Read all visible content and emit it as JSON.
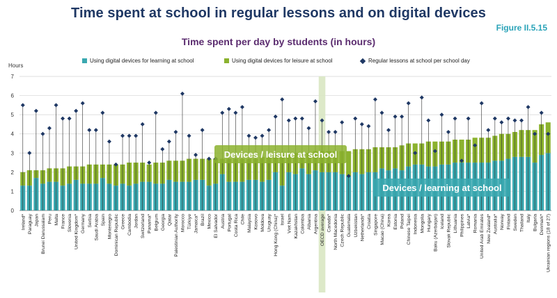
{
  "header": {
    "title": "Time spent at school in regular lessons and on digital devices",
    "figure": "Figure II.5.15",
    "subtitle": "Time spent per day by students (in hours)"
  },
  "annotations": {
    "leisure": "Devices / leisure at school",
    "learning": "Devices / learning at school"
  },
  "colors": {
    "learning": "#3aa8b0",
    "leisure": "#8bb22e",
    "marker": "#1f3864",
    "highlight": "#d9e7c3"
  },
  "chart_data": {
    "type": "bar",
    "ylabel": "Hours",
    "ylim": [
      0,
      7
    ],
    "yticks": [
      0,
      1,
      2,
      3,
      4,
      5,
      6,
      7
    ],
    "highlight_category": "OECD average",
    "legend": [
      "Using digital devices for learning at school",
      "Using digital devices for leisure at school",
      "Regular lessons at school per school day"
    ],
    "categories": [
      "Ireland*",
      "Paraguay",
      "Japan",
      "Brunei Darussalam",
      "Peru",
      "Malta",
      "France",
      "Slovenia",
      "United Kingdom*",
      "Germany",
      "Serbia",
      "Saudi Arabia",
      "Spain",
      "Montenegro",
      "Dominican Republic",
      "Greece",
      "Cambodia",
      "Jordan",
      "Switzerland",
      "Panama*",
      "Belgium",
      "Georgia",
      "Qatar",
      "Palestinian Authority",
      "Morocco",
      "Türkiye",
      "Jamaica*",
      "Brazil",
      "Mexico",
      "El Salvador",
      "Austria",
      "Portugal",
      "Costa Rica",
      "Chile",
      "Malaysia",
      "Kosovo",
      "Moldova",
      "Uruguay",
      "Hong Kong (China)*",
      "Israel",
      "Viet Nam",
      "Kazakhstan",
      "Colombia",
      "Albania",
      "Argentina",
      "OECD average",
      "Canada*",
      "North Macedonia",
      "Czech Republic",
      "Guatemala",
      "Uzbekistan",
      "Netherlands*",
      "Croatia",
      "Singapore",
      "Macao (China)",
      "Korea",
      "Estonia",
      "Poland",
      "Chinese Taipei",
      "Indonesia",
      "Mongolia",
      "Hungary",
      "Baku (Azerbaijan)",
      "Iceland",
      "Slovak Republic",
      "Lithuania",
      "Philippines",
      "Latvia*",
      "Romania",
      "United Arab Emirates",
      "New Zealand*",
      "Australia*",
      "Norway",
      "Finland",
      "Sweden",
      "Thailand",
      "Italy",
      "Bulgaria",
      "Denmark*",
      "Ukrainian regions (18 of 27)"
    ],
    "series": [
      {
        "name": "Using digital devices for learning at school",
        "values": [
          1.3,
          1.3,
          1.7,
          1.4,
          1.5,
          1.5,
          1.3,
          1.4,
          1.6,
          1.4,
          1.4,
          1.4,
          1.7,
          1.4,
          1.3,
          1.4,
          1.3,
          1.4,
          1.5,
          1.5,
          1.4,
          1.4,
          1.6,
          1.5,
          1.5,
          1.5,
          1.6,
          1.6,
          1.3,
          1.4,
          1.9,
          1.5,
          1.5,
          1.5,
          1.6,
          1.6,
          1.5,
          1.6,
          2.0,
          1.3,
          2.0,
          1.9,
          2.2,
          1.9,
          2.1,
          2.0,
          2.0,
          2.0,
          1.9,
          1.8,
          2.0,
          1.9,
          2.0,
          2.0,
          2.2,
          2.1,
          2.2,
          2.1,
          2.3,
          2.4,
          2.4,
          2.3,
          2.3,
          2.4,
          2.4,
          2.5,
          2.5,
          2.5,
          2.5,
          2.5,
          2.5,
          2.6,
          2.6,
          2.7,
          2.8,
          2.8,
          2.8,
          2.5,
          2.9,
          3.0
        ]
      },
      {
        "name": "Using digital devices for leisure at school",
        "values": [
          0.7,
          0.8,
          0.4,
          0.7,
          0.7,
          0.7,
          0.9,
          0.9,
          0.7,
          0.9,
          1.0,
          1.0,
          0.7,
          1.0,
          1.1,
          1.0,
          1.2,
          1.1,
          1.0,
          0.9,
          1.1,
          1.1,
          1.0,
          1.1,
          1.1,
          1.2,
          1.1,
          1.1,
          1.4,
          1.3,
          0.8,
          1.2,
          1.2,
          1.2,
          1.1,
          1.1,
          1.3,
          1.2,
          0.9,
          1.6,
          0.9,
          1.1,
          0.8,
          1.1,
          1.0,
          1.1,
          1.1,
          1.1,
          1.2,
          1.3,
          1.2,
          1.3,
          1.2,
          1.3,
          1.1,
          1.2,
          1.1,
          1.3,
          1.2,
          1.1,
          1.1,
          1.3,
          1.3,
          1.2,
          1.2,
          1.2,
          1.2,
          1.2,
          1.3,
          1.3,
          1.3,
          1.3,
          1.4,
          1.3,
          1.3,
          1.4,
          1.4,
          1.7,
          1.6,
          1.6
        ]
      },
      {
        "name": "Regular lessons at school per school day",
        "values": [
          5.5,
          3.0,
          5.2,
          4.0,
          4.3,
          5.5,
          4.8,
          4.8,
          5.2,
          5.6,
          4.2,
          4.2,
          5.1,
          3.6,
          2.4,
          3.9,
          3.9,
          3.9,
          4.5,
          2.5,
          5.1,
          3.2,
          3.6,
          4.1,
          6.1,
          3.9,
          2.9,
          4.2,
          2.7,
          2.7,
          5.1,
          5.3,
          5.1,
          5.4,
          3.9,
          3.8,
          3.9,
          4.2,
          4.9,
          5.8,
          4.7,
          4.8,
          4.8,
          4.3,
          5.7,
          4.7,
          4.1,
          4.1,
          4.6,
          1.8,
          4.8,
          4.5,
          4.4,
          5.8,
          5.1,
          4.2,
          4.9,
          4.9,
          5.6,
          3.0,
          5.9,
          4.7,
          3.1,
          5.0,
          4.1,
          4.8,
          2.6,
          4.8,
          3.4,
          5.6,
          4.2,
          4.8,
          4.6,
          4.8,
          4.7,
          4.7,
          5.4,
          4.0,
          5.1,
          4.0
        ]
      }
    ]
  }
}
